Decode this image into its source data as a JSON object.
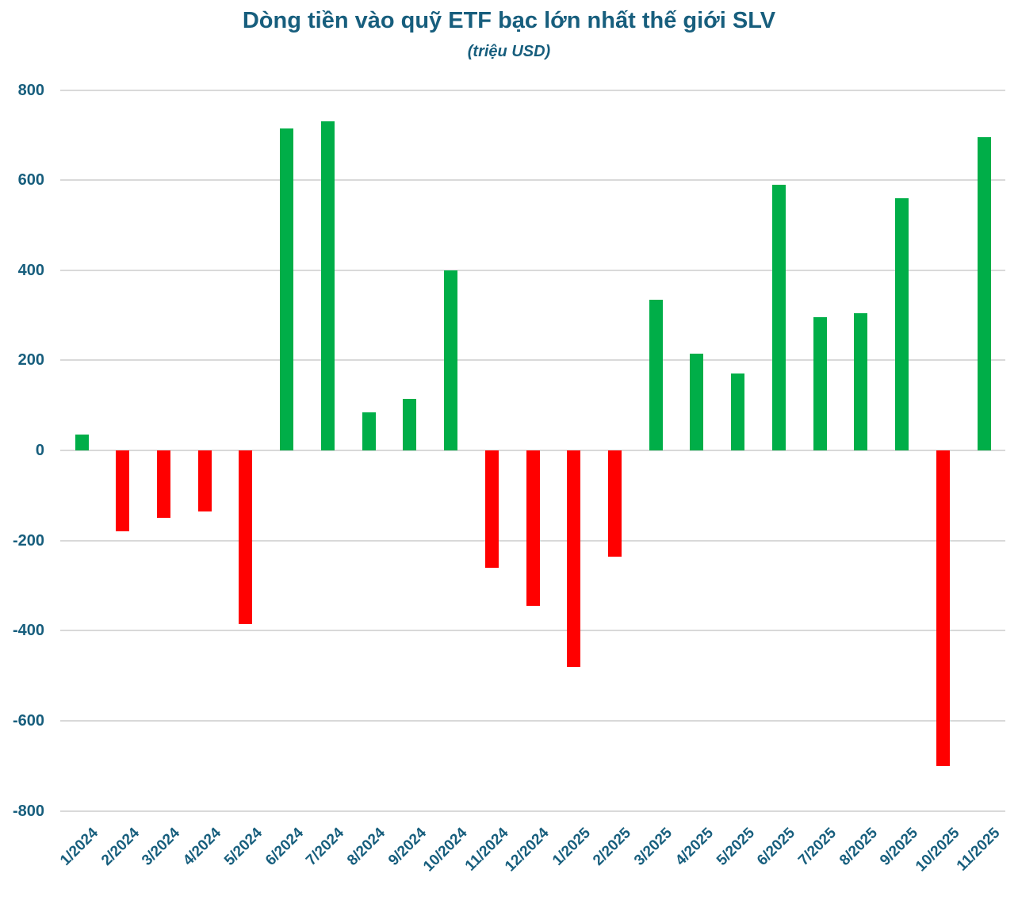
{
  "chart": {
    "title": "Dòng tiền vào quỹ ETF bạc lớn nhất thế giới SLV",
    "subtitle": "(triệu USD)"
  },
  "chart_data": {
    "type": "bar",
    "title": "Dòng tiền vào quỹ ETF bạc lớn nhất thế giới SLV",
    "subtitle": "(triệu USD)",
    "unit": "triệu USD",
    "categories": [
      "1/2024",
      "2/2024",
      "3/2024",
      "4/2024",
      "5/2024",
      "6/2024",
      "7/2024",
      "8/2024",
      "9/2024",
      "10/2024",
      "11/2024",
      "12/2024",
      "1/2025",
      "2/2025",
      "3/2025",
      "4/2025",
      "5/2025",
      "6/2025",
      "7/2025",
      "8/2025",
      "9/2025",
      "10/2025",
      "11/2025"
    ],
    "values": [
      35,
      -180,
      -150,
      -135,
      -385,
      715,
      730,
      85,
      115,
      400,
      -260,
      -345,
      -480,
      -235,
      335,
      215,
      170,
      590,
      295,
      305,
      560,
      -700,
      695
    ],
    "ylim": [
      -800,
      800
    ],
    "ytick_interval": 200,
    "ytick_labels": [
      "800",
      "600",
      "400",
      "200",
      "0",
      "-200",
      "-400",
      "-600",
      "-800"
    ],
    "grid": "horizontal",
    "legend": "none",
    "colors": {
      "positive": "#00AE48",
      "negative": "#FF0000",
      "text": "#175E7D",
      "gridline": "#D9D9D9"
    }
  }
}
